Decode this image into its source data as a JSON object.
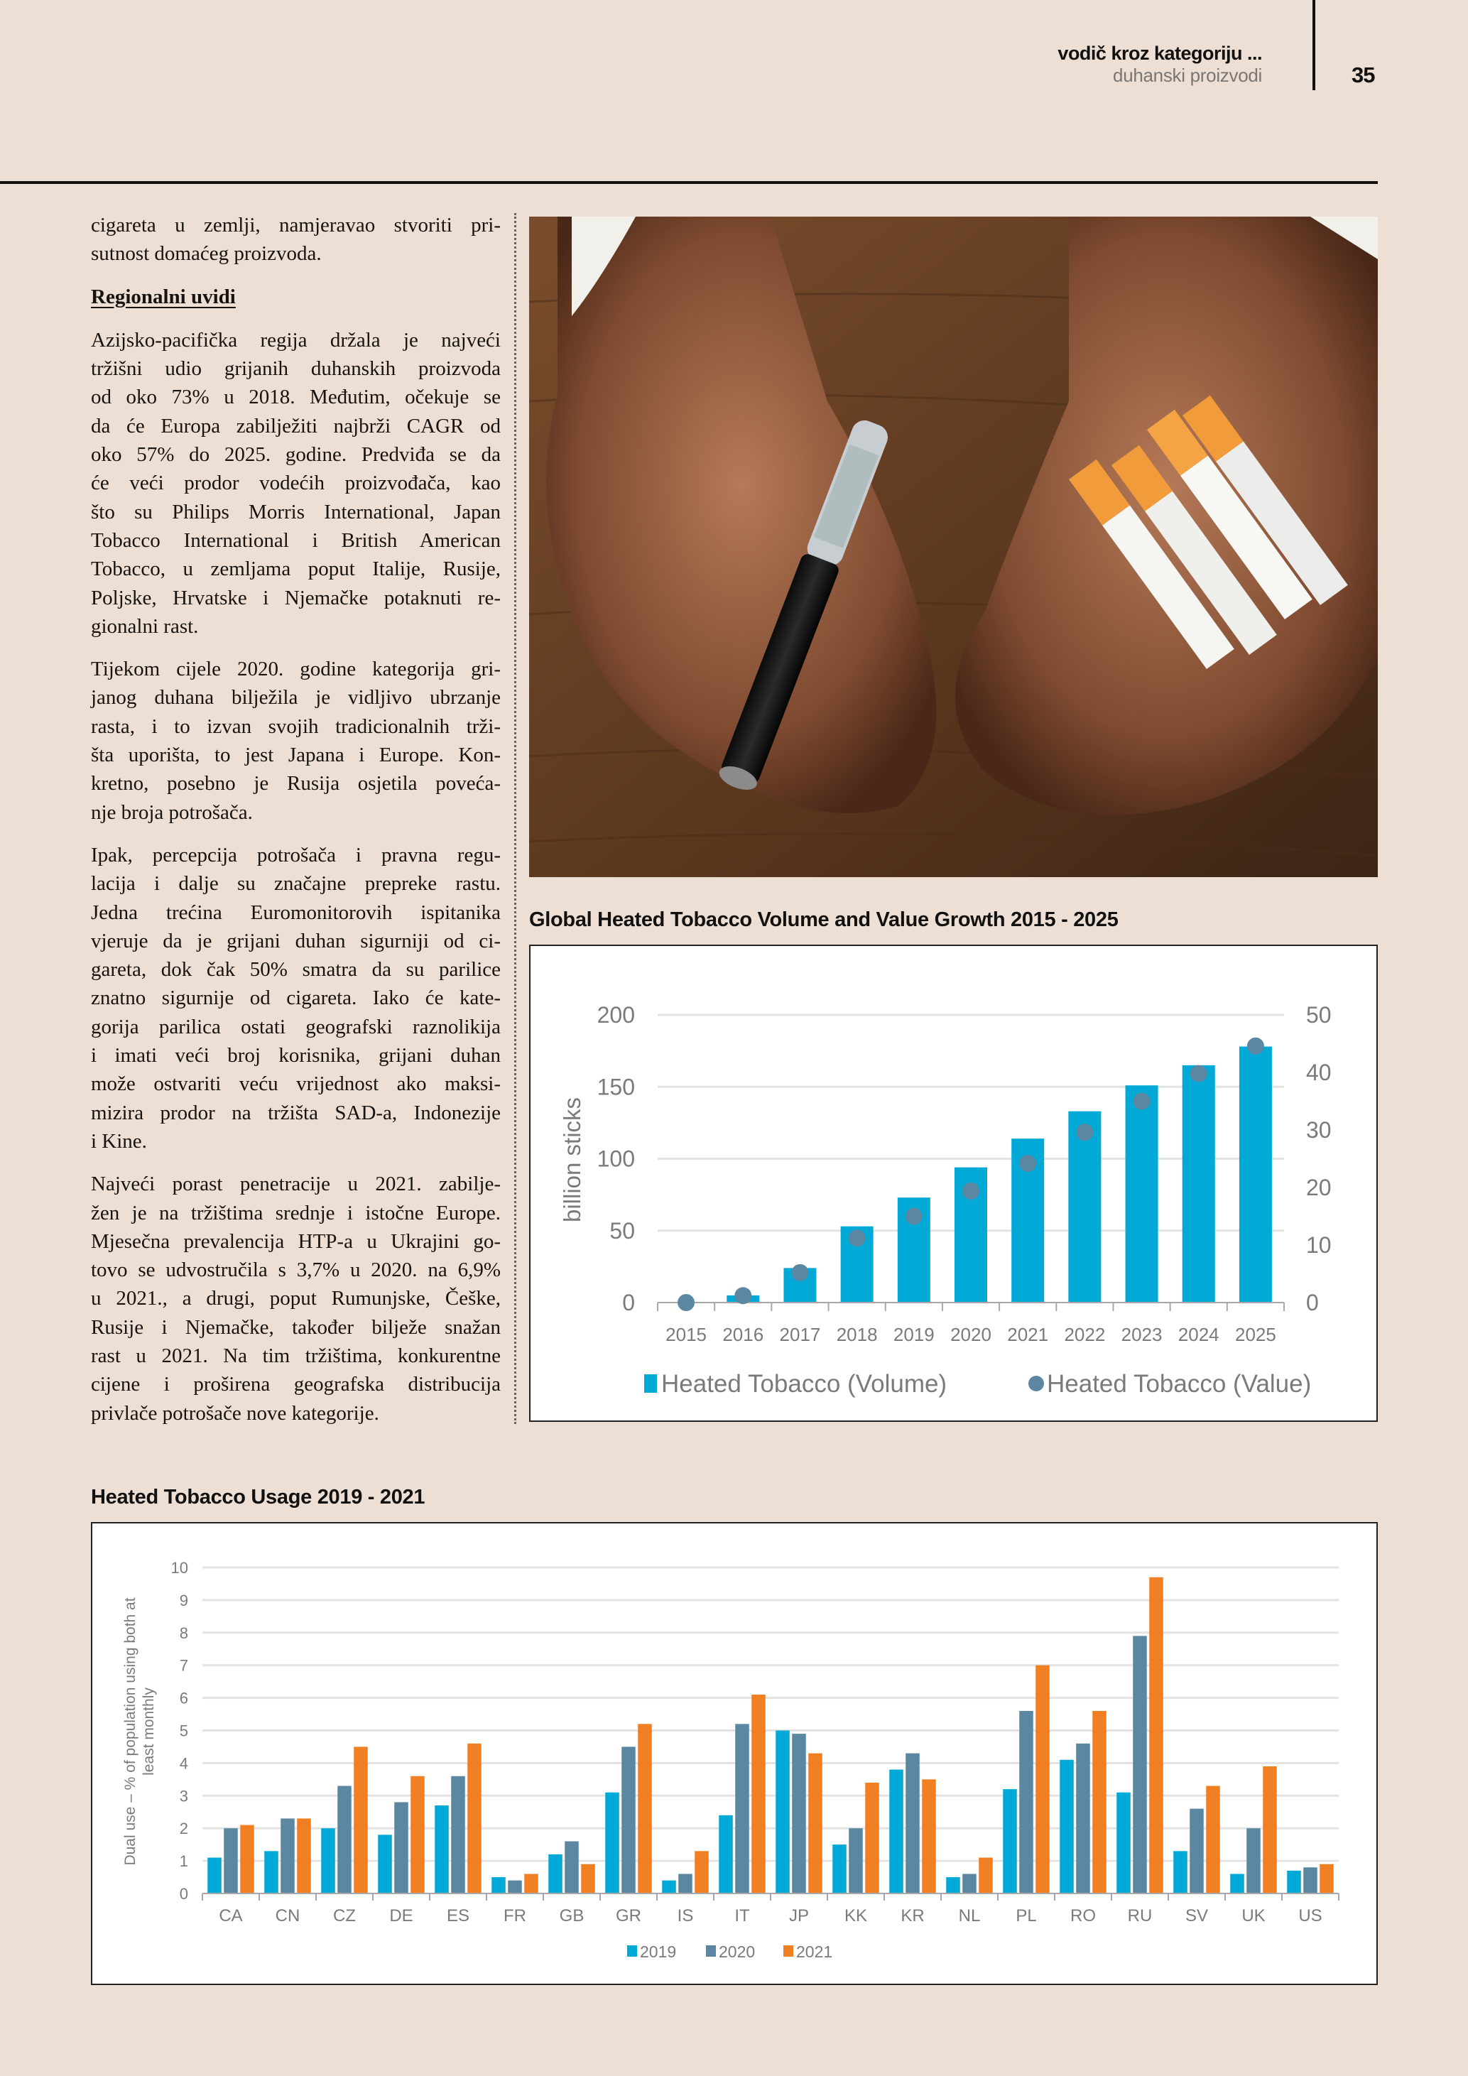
{
  "header": {
    "title": "vodič kroz kategoriju ...",
    "subtitle": "duhanski proizvodi",
    "page_number": "35"
  },
  "article": {
    "intro_lines": [
      "cigareta u zemlji, namjeravao stvoriti pri-",
      "sutnost domaćeg proizvoda."
    ],
    "heading": "Regionalni uvidi",
    "paragraphs": [
      [
        "Azijsko-pacifička regija držala je najveći",
        "tržišni udio grijanih duhanskih proizvoda",
        "od oko 73% u 2018. Međutim, očekuje se",
        "da će Europa zabilježiti najbrži CAGR od",
        "oko 57% do 2025. godine. Predviđa se da",
        "će veći prodor vodećih proizvođača, kao",
        "što su Philips Morris International, Japan",
        "Tobacco International i British American",
        "Tobacco, u zemljama poput Italije, Rusije,",
        "Poljske, Hrvatske i Njemačke potaknuti re-",
        "gionalni rast."
      ],
      [
        "Tijekom cijele 2020. godine kategorija gri-",
        "janog duhana bilježila je vidljivo ubrzanje",
        "rasta, i to izvan svojih tradicionalnih trži-",
        "šta uporišta, to jest Japana i Europe. Kon-",
        "kretno, posebno je Rusija osjetila poveća-",
        "nje broja potrošača."
      ],
      [
        "Ipak, percepcija potrošača i pravna regu-",
        "lacija i dalje su značajne prepreke rastu.",
        "Jedna trećina Euromonitorovih ispitanika",
        "vjeruje da je grijani duhan sigurniji od ci-",
        "gareta, dok čak 50% smatra da su parilice",
        "znatno sigurnije od cigareta. Iako će kate-",
        "gorija parilica ostati geografski raznolikija",
        "i imati veći broj korisnika, grijani duhan",
        "može ostvariti veću vrijednost ako maksi-",
        "mizira prodor na tržišta SAD-a, Indonezije",
        "i Kine."
      ],
      [
        "Najveći porast penetracije u 2021. zabilje-",
        "žen je na tržištima srednje i istočne Europe.",
        "Mjesečna prevalencija HTP-a u Ukrajini go-",
        "tovo se udvostručila s 3,7% u 2020. na 6,9%",
        "u 2021., a drugi, poput Rumunjske, Češke,",
        "Rusije i Njemačke, također bilježe snažan",
        "rast u 2021. Na tim tržištima, konkurentne",
        "cijene i proširena geografska distribucija",
        "privlače potrošače nove kategorije."
      ]
    ]
  },
  "photo": {
    "subject": "hands-holding-e-cigarette-and-cigarettes"
  },
  "colors": {
    "background": "#eddfd3",
    "cyan": "#00a9d6",
    "slate": "#5b87a2",
    "orange": "#f07f22",
    "grid": "#e3e3e3"
  },
  "chart_data": [
    {
      "type": "bar",
      "title": "Global Heated Tobacco Volume and Value Growth 2015 - 2025",
      "categories": [
        "2015",
        "2016",
        "2017",
        "2018",
        "2019",
        "2020",
        "2021",
        "2022",
        "2023",
        "2024",
        "2025"
      ],
      "ylabel": "billion sticks",
      "ylim": [
        0,
        200
      ],
      "yticks": [
        "0",
        "50",
        "100",
        "150",
        "200"
      ],
      "y2lim": [
        0,
        50
      ],
      "y2ticks": [
        "0",
        "10",
        "20",
        "30",
        "40",
        "50"
      ],
      "grid": true,
      "legend_position": "bottom",
      "series": [
        {
          "name": "Heated Tobacco (Volume)",
          "type": "bar",
          "axis": "left",
          "color": "#00a9d6",
          "values": [
            0,
            5,
            24,
            53,
            73,
            94,
            114,
            133,
            151,
            165,
            178
          ]
        },
        {
          "name": "Heated Tobacco (Value)",
          "type": "scatter",
          "axis": "right",
          "color": "#5b87a2",
          "values": [
            0,
            1.2,
            5.2,
            11.2,
            15,
            19.4,
            24.2,
            29.6,
            35,
            39.8,
            44.6
          ]
        }
      ]
    },
    {
      "type": "bar",
      "title": "Heated Tobacco Usage 2019 - 2021",
      "categories": [
        "CA",
        "CN",
        "CZ",
        "DE",
        "ES",
        "FR",
        "GB",
        "GR",
        "IS",
        "IT",
        "JP",
        "KK",
        "KR",
        "NL",
        "PL",
        "RO",
        "RU",
        "SV",
        "UK",
        "US"
      ],
      "ylabel_lines": [
        "Dual use – % of population using both at",
        "least monthly"
      ],
      "ylim": [
        0,
        10
      ],
      "yticks": [
        "0",
        "1",
        "2",
        "3",
        "4",
        "5",
        "6",
        "7",
        "8",
        "9",
        "10"
      ],
      "grid": true,
      "legend_position": "bottom",
      "series": [
        {
          "name": "2019",
          "color": "#00a9d6",
          "values": [
            1.1,
            1.3,
            2.0,
            1.8,
            2.7,
            0.5,
            1.2,
            3.1,
            0.4,
            2.4,
            5.0,
            1.5,
            3.8,
            0.5,
            3.2,
            4.1,
            3.1,
            1.3,
            0.6,
            0.7
          ]
        },
        {
          "name": "2020",
          "color": "#5b87a2",
          "values": [
            2.0,
            2.3,
            3.3,
            2.8,
            3.6,
            0.4,
            1.6,
            4.5,
            0.6,
            5.2,
            4.9,
            2.0,
            4.3,
            0.6,
            5.6,
            4.6,
            7.9,
            2.6,
            2.0,
            0.8
          ]
        },
        {
          "name": "2021",
          "color": "#f07f22",
          "values": [
            2.1,
            2.3,
            4.5,
            3.6,
            4.6,
            0.6,
            0.9,
            5.2,
            1.3,
            6.1,
            4.3,
            3.4,
            3.5,
            1.1,
            7.0,
            5.6,
            9.7,
            3.3,
            3.9,
            0.9
          ]
        }
      ]
    }
  ]
}
